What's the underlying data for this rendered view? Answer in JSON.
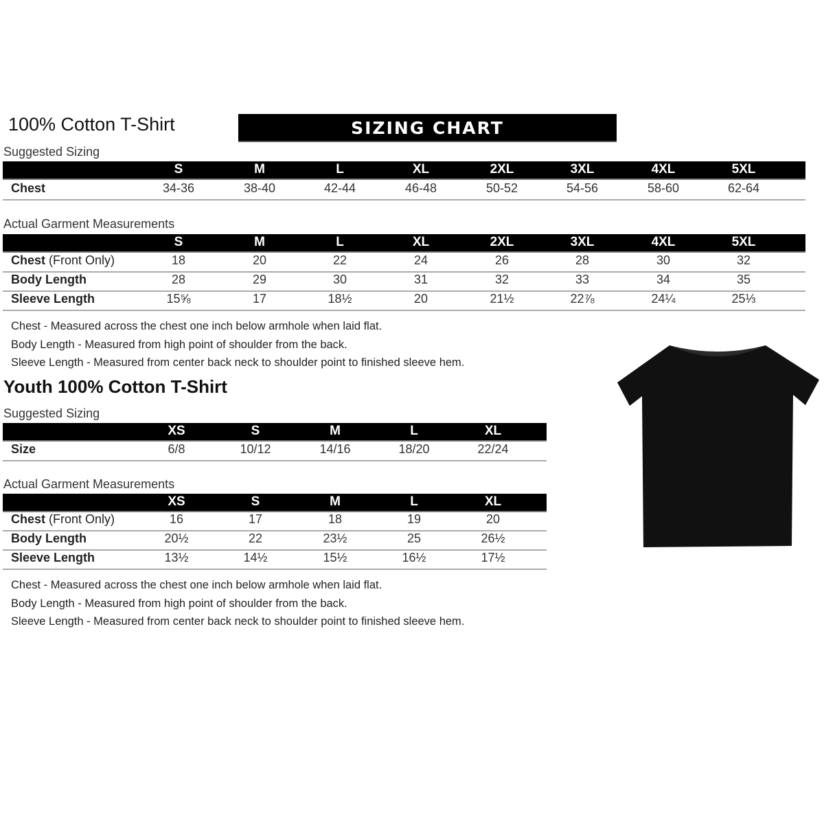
{
  "adult": {
    "title": "100% Cotton T-Shirt",
    "banner": "SIZING CHART",
    "suggested_label": "Suggested Sizing",
    "sizes": [
      "S",
      "M",
      "L",
      "XL",
      "2XL",
      "3XL",
      "4XL",
      "5XL"
    ],
    "suggested_rows": [
      {
        "label": "Chest",
        "values": [
          "34-36",
          "38-40",
          "42-44",
          "46-48",
          "50-52",
          "54-56",
          "58-60",
          "62-64"
        ]
      }
    ],
    "actual_label": "Actual Garment Measurements",
    "actual_rows": [
      {
        "label": "Chest",
        "label_suffix": "(Front Only)",
        "values": [
          "18",
          "20",
          "22",
          "24",
          "26",
          "28",
          "30",
          "32"
        ]
      },
      {
        "label": "Body Length",
        "label_suffix": "",
        "values": [
          "28",
          "29",
          "30",
          "31",
          "32",
          "33",
          "34",
          "35"
        ]
      },
      {
        "label": "Sleeve Length",
        "label_suffix": "",
        "values": [
          "15⅝",
          "17",
          "18½",
          "20",
          "21½",
          "22⅞",
          "24¼",
          "25⅓"
        ]
      }
    ],
    "notes": [
      "Chest - Measured across the chest one inch below armhole when laid flat.",
      "Body Length - Measured from high point of shoulder from the back.",
      "Sleeve Length - Measured from center back neck to shoulder point to finished sleeve hem."
    ]
  },
  "youth": {
    "title": "Youth 100% Cotton T-Shirt",
    "suggested_label": "Suggested Sizing",
    "sizes": [
      "XS",
      "S",
      "M",
      "L",
      "XL"
    ],
    "suggested_rows": [
      {
        "label": "Size",
        "values": [
          "6/8",
          "10/12",
          "14/16",
          "18/20",
          "22/24"
        ]
      }
    ],
    "actual_label": "Actual Garment Measurements",
    "actual_rows": [
      {
        "label": "Chest",
        "label_suffix": "(Front Only)",
        "values": [
          "16",
          "17",
          "18",
          "19",
          "20"
        ]
      },
      {
        "label": "Body Length",
        "label_suffix": "",
        "values": [
          "20½",
          "22",
          "23½",
          "25",
          "26½"
        ]
      },
      {
        "label": "Sleeve Length",
        "label_suffix": "",
        "values": [
          "13½",
          "14½",
          "15½",
          "16½",
          "17½"
        ]
      }
    ],
    "notes": [
      "Chest - Measured across the chest one inch below armhole when laid flat.",
      "Body Length - Measured from high point of shoulder from the back.",
      "Sleeve Length - Measured from center back neck to shoulder point to finished sleeve hem."
    ]
  },
  "image": {
    "icon": "tshirt-icon",
    "color": "#111111"
  }
}
